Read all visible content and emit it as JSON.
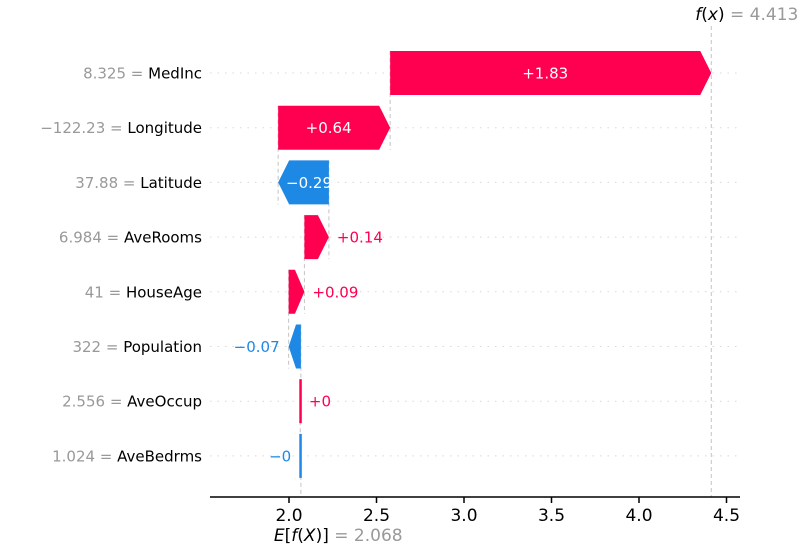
{
  "chart_data": {
    "type": "waterfall",
    "title": "",
    "xlabel": "",
    "ylabel": "",
    "grid": "dotted horizontal row guides",
    "legend_position": "none",
    "fx_annotation": {
      "prefix": "f(x)",
      "value_text": "= 4.413",
      "value": 4.413
    },
    "base_annotation": {
      "prefix": "E[f(X)]",
      "value_text": "= 2.068",
      "value": 2.068
    },
    "base_value": 2.068,
    "fx_value": 4.413,
    "x_axis": {
      "tick_labels": [
        "2.0",
        "2.5",
        "3.0",
        "3.5",
        "4.0",
        "4.5"
      ],
      "tick_values": [
        2.0,
        2.5,
        3.0,
        3.5,
        4.0,
        4.5
      ],
      "range_shown": [
        1.55,
        4.58
      ]
    },
    "features": [
      {
        "data_value": "8.325",
        "name": "MedInc",
        "contribution_label": "+1.83",
        "contribution": 1.835,
        "direction": "positive",
        "label_placement": "inside"
      },
      {
        "data_value": "−122.23",
        "name": "Longitude",
        "contribution_label": "+0.64",
        "contribution": 0.64,
        "direction": "positive",
        "label_placement": "inside"
      },
      {
        "data_value": "37.88",
        "name": "Latitude",
        "contribution_label": "−0.29",
        "contribution": -0.29,
        "direction": "negative",
        "label_placement": "inside"
      },
      {
        "data_value": "6.984",
        "name": "AveRooms",
        "contribution_label": "+0.14",
        "contribution": 0.14,
        "direction": "positive",
        "label_placement": "right"
      },
      {
        "data_value": "41",
        "name": "HouseAge",
        "contribution_label": "+0.09",
        "contribution": 0.09,
        "direction": "positive",
        "label_placement": "right"
      },
      {
        "data_value": "322",
        "name": "Population",
        "contribution_label": "−0.07",
        "contribution": -0.07,
        "direction": "negative",
        "label_placement": "left"
      },
      {
        "data_value": "2.556",
        "name": "AveOccup",
        "contribution_label": "+0",
        "contribution": 0.004,
        "direction": "positive",
        "label_placement": "right"
      },
      {
        "data_value": "1.024",
        "name": "AveBedrms",
        "contribution_label": "−0",
        "contribution": -0.004,
        "direction": "negative",
        "label_placement": "left"
      }
    ],
    "colors": {
      "positive_bar": "#ff0051",
      "negative_bar": "#1e88e5",
      "muted_value_text": "#999999",
      "feature_name_text": "#000000",
      "inside_bar_text": "#ffffff",
      "dashed_guide": "#c3c3c3",
      "dotted_gridline": "#d8d8d8",
      "axis": "#000000"
    }
  }
}
